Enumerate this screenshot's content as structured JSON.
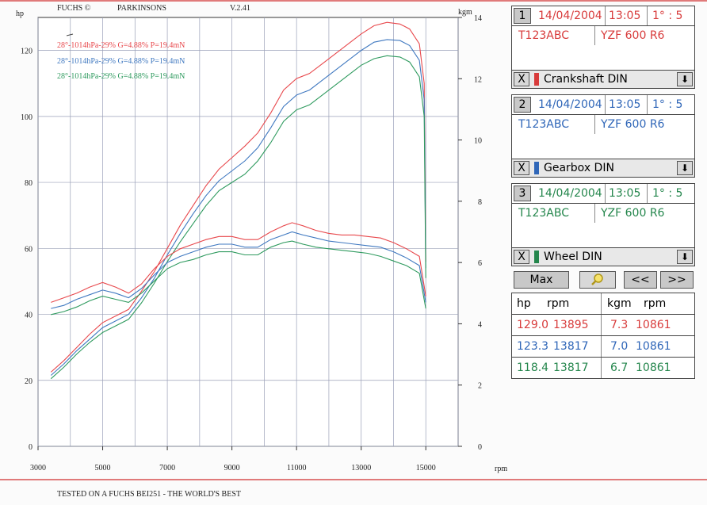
{
  "header": {
    "brand": "FUCHS ©",
    "shop": "PARKINSONS",
    "version": "V.2.41"
  },
  "footer": {
    "text": "TESTED ON A FUCHS BEI251 - THE WORLD'S BEST"
  },
  "colors": {
    "run1": "#e8484c",
    "run2": "#3f78c0",
    "run3": "#2e9a5e",
    "grid": "#9aa0b8",
    "axis": "#333333"
  },
  "chart_data": {
    "type": "line",
    "xlabel": "rpm",
    "ylabel_left": "hp",
    "ylabel_right": "kgm",
    "xlim": [
      3000,
      16000
    ],
    "ylim_left": [
      0,
      130
    ],
    "ylim_right": [
      0,
      14
    ],
    "x_ticks": [
      3000,
      5000,
      7000,
      9000,
      11000,
      13000,
      15000
    ],
    "y_ticks_left": [
      0,
      20,
      40,
      60,
      80,
      100,
      120
    ],
    "y_ticks_right": [
      0,
      2,
      4,
      6,
      8,
      10,
      12,
      14
    ],
    "grid": true,
    "legend": [
      {
        "text": "28°-1014hPa-29% G=4.88% P=19.4mN",
        "color": "#e8484c"
      },
      {
        "text": "28°-1014hPa-29% G=4.88% P=19.4mN",
        "color": "#3f78c0"
      },
      {
        "text": "28°-1014hPa-29% G=4.88% P=19.4mN",
        "color": "#2e9a5e"
      }
    ],
    "series": [
      {
        "kind": "power",
        "axis": "left",
        "color": "#e8484c",
        "x": [
          3400,
          3800,
          4200,
          4600,
          5000,
          5400,
          5800,
          6200,
          6600,
          7000,
          7400,
          7800,
          8200,
          8600,
          9000,
          9400,
          9800,
          10200,
          10600,
          11000,
          11400,
          11800,
          12200,
          12600,
          13000,
          13400,
          13800,
          14200,
          14500,
          14800,
          14950,
          15000
        ],
        "y": [
          22.5,
          26,
          30,
          34,
          37.5,
          39.5,
          41.5,
          47,
          53,
          60,
          67,
          73,
          79,
          84,
          87.5,
          91,
          95,
          101,
          108,
          111.5,
          113,
          116,
          119,
          122,
          125,
          127.5,
          128.5,
          128,
          126.5,
          122,
          110,
          56
        ]
      },
      {
        "kind": "power",
        "axis": "left",
        "color": "#3f78c0",
        "x": [
          3400,
          3800,
          4200,
          4600,
          5000,
          5400,
          5800,
          6200,
          6600,
          7000,
          7400,
          7800,
          8200,
          8600,
          9000,
          9400,
          9800,
          10200,
          10600,
          11000,
          11400,
          11800,
          12200,
          12600,
          13000,
          13400,
          13800,
          14200,
          14500,
          14800,
          14950,
          15000
        ],
        "y": [
          21.5,
          25,
          29,
          32.5,
          36,
          38,
          40,
          45,
          51,
          58,
          64.5,
          70.5,
          76,
          80.5,
          83.5,
          86.5,
          90.5,
          96.5,
          103,
          106.5,
          108,
          111,
          114,
          117,
          120,
          122.5,
          123.3,
          123,
          121.5,
          117,
          105,
          54
        ]
      },
      {
        "kind": "power",
        "axis": "left",
        "color": "#2e9a5e",
        "x": [
          3400,
          3800,
          4200,
          4600,
          5000,
          5400,
          5800,
          6200,
          6600,
          7000,
          7400,
          7800,
          8200,
          8600,
          9000,
          9400,
          9800,
          10200,
          10600,
          11000,
          11400,
          11800,
          12200,
          12600,
          13000,
          13400,
          13800,
          14200,
          14500,
          14800,
          14950,
          15000
        ],
        "y": [
          20.5,
          24,
          28,
          31.5,
          34.5,
          36.5,
          38.5,
          43.5,
          49.5,
          56,
          62,
          67.5,
          73,
          77.5,
          80,
          82.5,
          86.5,
          92,
          98.5,
          102,
          103.5,
          106.5,
          109.5,
          112.5,
          115.5,
          117.5,
          118.4,
          118,
          116.5,
          112,
          100,
          51
        ]
      },
      {
        "kind": "torque",
        "axis": "right",
        "color": "#e8484c",
        "x": [
          3400,
          3800,
          4200,
          4600,
          5000,
          5400,
          5800,
          6200,
          6600,
          7000,
          7400,
          7800,
          8200,
          8600,
          9000,
          9400,
          9800,
          10200,
          10600,
          10861,
          11200,
          11600,
          12000,
          12400,
          12800,
          13200,
          13600,
          14000,
          14400,
          14800,
          15000
        ],
        "y": [
          4.7,
          4.85,
          5.0,
          5.2,
          5.35,
          5.2,
          5.0,
          5.3,
          5.8,
          6.2,
          6.45,
          6.6,
          6.75,
          6.85,
          6.85,
          6.75,
          6.75,
          7.0,
          7.2,
          7.3,
          7.2,
          7.05,
          6.95,
          6.9,
          6.9,
          6.85,
          6.8,
          6.65,
          6.45,
          6.2,
          4.9
        ]
      },
      {
        "kind": "torque",
        "axis": "right",
        "color": "#3f78c0",
        "x": [
          3400,
          3800,
          4200,
          4600,
          5000,
          5400,
          5800,
          6200,
          6600,
          7000,
          7400,
          7800,
          8200,
          8600,
          9000,
          9400,
          9800,
          10200,
          10600,
          10861,
          11200,
          11600,
          12000,
          12400,
          12800,
          13200,
          13600,
          14000,
          14400,
          14800,
          15000
        ],
        "y": [
          4.5,
          4.6,
          4.8,
          4.95,
          5.1,
          5.0,
          4.85,
          5.15,
          5.6,
          6.0,
          6.2,
          6.35,
          6.5,
          6.6,
          6.6,
          6.5,
          6.5,
          6.75,
          6.9,
          7.0,
          6.9,
          6.8,
          6.7,
          6.65,
          6.6,
          6.55,
          6.5,
          6.35,
          6.15,
          5.9,
          4.7
        ]
      },
      {
        "kind": "torque",
        "axis": "right",
        "color": "#2e9a5e",
        "x": [
          3400,
          3800,
          4200,
          4600,
          5000,
          5400,
          5800,
          6200,
          6600,
          7000,
          7400,
          7800,
          8200,
          8600,
          9000,
          9400,
          9800,
          10200,
          10600,
          10861,
          11200,
          11600,
          12000,
          12400,
          12800,
          13200,
          13600,
          14000,
          14400,
          14800,
          15000
        ],
        "y": [
          4.3,
          4.4,
          4.55,
          4.75,
          4.9,
          4.8,
          4.7,
          5.0,
          5.4,
          5.8,
          6.0,
          6.1,
          6.25,
          6.35,
          6.35,
          6.25,
          6.25,
          6.5,
          6.65,
          6.7,
          6.6,
          6.5,
          6.45,
          6.4,
          6.35,
          6.3,
          6.2,
          6.05,
          5.9,
          5.65,
          4.5
        ]
      }
    ]
  },
  "panel": {
    "runs": [
      {
        "num": "1",
        "date": "14/04/2004",
        "time": "13:05",
        "gear": "1° : 5",
        "reg": "T123ABC",
        "model": "YZF 600 R6",
        "color": "#d83b3b",
        "x_label": "X",
        "correction": "Crankshaft DIN",
        "dd": "⬇"
      },
      {
        "num": "2",
        "date": "14/04/2004",
        "time": "13:05",
        "gear": "1° : 5",
        "reg": "T123ABC",
        "model": "YZF 600 R6",
        "color": "#2f66b8",
        "x_label": "X",
        "correction": "Gearbox DIN",
        "dd": "⬇"
      },
      {
        "num": "3",
        "date": "14/04/2004",
        "time": "13:05",
        "gear": "1° : 5",
        "reg": "T123ABC",
        "model": "YZF 600 R6",
        "color": "#24864c",
        "x_label": "X",
        "correction": "Wheel DIN",
        "dd": "⬇"
      }
    ],
    "buttons": {
      "max": "Max",
      "prev": "<<",
      "next": ">>"
    },
    "table": {
      "headers": {
        "hp": "hp",
        "rpm1": "rpm",
        "kgm": "kgm",
        "rpm2": "rpm"
      },
      "rows": [
        {
          "hp": "129.0",
          "hp_rpm": "13895",
          "kgm": "7.3",
          "kgm_rpm": "10861",
          "color": "#d83b3b"
        },
        {
          "hp": "123.3",
          "hp_rpm": "13817",
          "kgm": "7.0",
          "kgm_rpm": "10861",
          "color": "#2f66b8"
        },
        {
          "hp": "118.4",
          "hp_rpm": "13817",
          "kgm": "6.7",
          "kgm_rpm": "10861",
          "color": "#24864c"
        }
      ]
    }
  }
}
